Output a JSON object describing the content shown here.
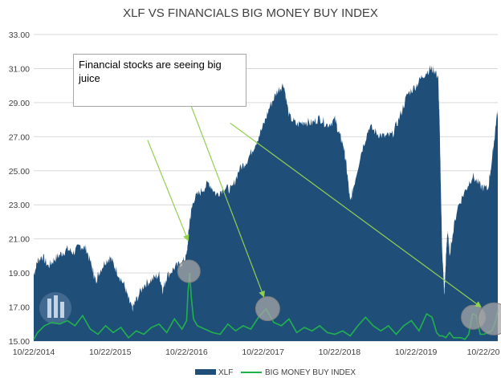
{
  "chart_data": {
    "type": "area",
    "title": "XLF VS FINANCIALS BIG MONEY BUY INDEX",
    "xlabel": "",
    "ylabel": "",
    "ylim": [
      15.0,
      33.0
    ],
    "y_ticks": [
      "15.00",
      "17.00",
      "19.00",
      "21.00",
      "23.00",
      "25.00",
      "27.00",
      "29.00",
      "31.00",
      "33.00"
    ],
    "x_ticks": [
      "10/22/2014",
      "10/22/2015",
      "10/22/2016",
      "10/22/2017",
      "10/22/2018",
      "10/22/2019",
      "10/22/20"
    ],
    "x_range": [
      2014.81,
      2020.88
    ],
    "grid": true,
    "legend_position": "bottom",
    "annotation": "Financial stocks are seeing big juice",
    "colors": {
      "xlf": "#1f4e79",
      "index": "#22b24c",
      "arrow": "#92d050",
      "highlight": "#a5a5a5",
      "grid": "#d9d9d9"
    },
    "series": [
      {
        "name": "XLF",
        "type": "area",
        "x": [
          2014.81,
          2014.86,
          2014.92,
          2015.0,
          2015.08,
          2015.16,
          2015.25,
          2015.33,
          2015.42,
          2015.5,
          2015.58,
          2015.62,
          2015.66,
          2015.75,
          2015.81,
          2015.9,
          2016.0,
          2016.06,
          2016.1,
          2016.15,
          2016.25,
          2016.35,
          2016.45,
          2016.5,
          2016.55,
          2016.65,
          2016.75,
          2016.81,
          2016.85,
          2016.9,
          2017.0,
          2017.1,
          2017.2,
          2017.3,
          2017.4,
          2017.5,
          2017.6,
          2017.7,
          2017.81,
          2017.9,
          2018.0,
          2018.08,
          2018.15,
          2018.25,
          2018.35,
          2018.45,
          2018.55,
          2018.65,
          2018.75,
          2018.81,
          2018.86,
          2018.9,
          2018.95,
          2019.0,
          2019.1,
          2019.2,
          2019.3,
          2019.4,
          2019.5,
          2019.6,
          2019.7,
          2019.81,
          2019.9,
          2020.0,
          2020.05,
          2020.1,
          2020.12,
          2020.15,
          2020.18,
          2020.2,
          2020.22,
          2020.25,
          2020.35,
          2020.45,
          2020.55,
          2020.65,
          2020.75,
          2020.82,
          2020.86,
          2020.88
        ],
        "values": [
          18.9,
          19.7,
          20.0,
          19.4,
          19.8,
          20.1,
          20.4,
          20.2,
          20.6,
          20.4,
          19.2,
          18.5,
          19.0,
          19.7,
          19.9,
          19.1,
          18.2,
          17.3,
          16.9,
          17.4,
          18.3,
          18.6,
          18.9,
          18.0,
          18.8,
          19.3,
          19.6,
          20.0,
          22.1,
          23.3,
          23.8,
          24.3,
          23.6,
          24.0,
          23.9,
          25.1,
          25.6,
          26.5,
          27.6,
          28.8,
          29.7,
          30.1,
          28.2,
          27.7,
          27.9,
          27.8,
          28.1,
          27.7,
          28.0,
          27.1,
          26.5,
          25.3,
          23.1,
          24.2,
          26.2,
          27.6,
          27.2,
          27.0,
          27.1,
          28.2,
          29.5,
          30.0,
          30.6,
          31.0,
          30.9,
          30.5,
          27.5,
          20.7,
          17.6,
          19.6,
          21.5,
          20.2,
          22.8,
          23.8,
          24.7,
          24.1,
          23.9,
          26.2,
          28.0,
          28.6
        ]
      },
      {
        "name": "BIG MONEY BUY INDEX",
        "type": "line",
        "x": [
          2014.81,
          2014.86,
          2014.95,
          2015.05,
          2015.15,
          2015.25,
          2015.35,
          2015.45,
          2015.55,
          2015.65,
          2015.75,
          2015.85,
          2015.95,
          2016.05,
          2016.15,
          2016.25,
          2016.35,
          2016.45,
          2016.55,
          2016.65,
          2016.75,
          2016.81,
          2016.83,
          2016.85,
          2016.87,
          2016.9,
          2016.95,
          2017.05,
          2017.15,
          2017.25,
          2017.35,
          2017.45,
          2017.55,
          2017.65,
          2017.75,
          2017.85,
          2017.95,
          2018.05,
          2018.15,
          2018.25,
          2018.35,
          2018.45,
          2018.55,
          2018.65,
          2018.75,
          2018.85,
          2018.95,
          2019.05,
          2019.15,
          2019.25,
          2019.35,
          2019.45,
          2019.55,
          2019.65,
          2019.75,
          2019.85,
          2019.95,
          2020.02,
          2020.08,
          2020.12,
          2020.16,
          2020.2,
          2020.25,
          2020.3,
          2020.4,
          2020.45,
          2020.5,
          2020.55,
          2020.6,
          2020.65,
          2020.7,
          2020.75,
          2020.8,
          2020.84,
          2020.88
        ],
        "values": [
          15.1,
          15.5,
          15.9,
          16.1,
          16.0,
          16.2,
          15.9,
          16.5,
          15.7,
          15.4,
          15.9,
          15.5,
          15.8,
          15.2,
          15.6,
          15.4,
          15.8,
          16.0,
          15.5,
          16.3,
          15.7,
          16.2,
          18.0,
          19.0,
          17.6,
          16.3,
          15.9,
          15.7,
          15.5,
          15.4,
          16.0,
          15.6,
          15.9,
          15.7,
          16.4,
          16.9,
          16.1,
          15.9,
          16.3,
          15.5,
          15.8,
          15.6,
          15.9,
          15.5,
          15.4,
          15.6,
          15.3,
          15.9,
          16.4,
          15.9,
          15.6,
          15.9,
          15.4,
          15.9,
          16.2,
          15.6,
          16.6,
          16.4,
          15.5,
          15.3,
          15.3,
          15.2,
          15.5,
          15.2,
          15.2,
          15.1,
          15.4,
          16.6,
          16.5,
          15.4,
          15.4,
          15.5,
          15.6,
          16.0,
          16.8
        ]
      }
    ],
    "highlights": [
      {
        "x": 2016.84,
        "y": 19.1
      },
      {
        "x": 2017.87,
        "y": 16.9
      },
      {
        "x": 2020.56,
        "y": 16.4
      },
      {
        "x": 2020.83,
        "y": 16.3
      }
    ],
    "arrows": [
      {
        "from": [
          2016.3,
          26.8
        ],
        "to": [
          2016.83,
          20.9
        ]
      },
      {
        "from": [
          2016.87,
          28.8
        ],
        "to": [
          2017.82,
          17.6
        ]
      },
      {
        "from": [
          2017.38,
          27.8
        ],
        "to": [
          2020.66,
          17.0
        ]
      }
    ]
  }
}
